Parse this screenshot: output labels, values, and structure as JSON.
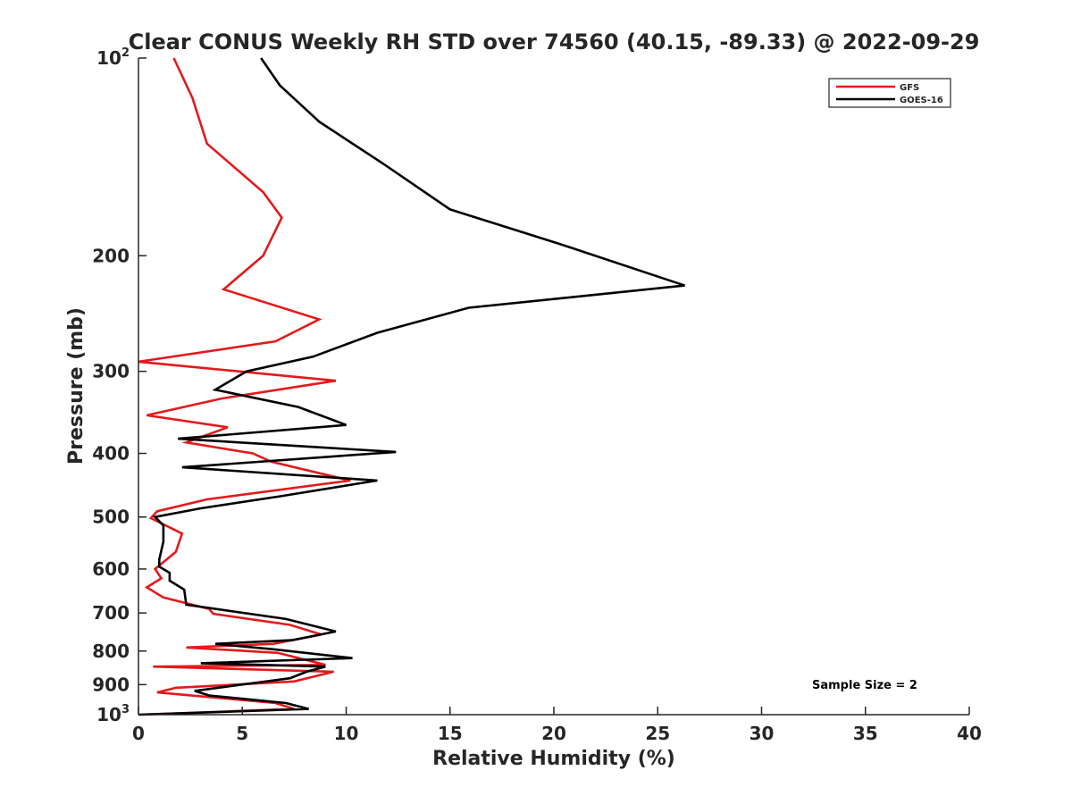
{
  "chart_data": {
    "type": "line",
    "title": "Clear CONUS Weekly RH STD over 74560 (40.15, -89.33) @ 2022-09-29",
    "xlabel": "Relative Humidity (%)",
    "ylabel": "Pressure (mb)",
    "xlim": [
      0,
      40
    ],
    "ylim": [
      100,
      1000
    ],
    "y_scale": "log",
    "y_reversed": true,
    "x_ticks": [
      "0",
      "5",
      "10",
      "15",
      "20",
      "25",
      "30",
      "35",
      "40"
    ],
    "y_ticks": [
      {
        "value": 100,
        "base": "10",
        "exp": "2"
      },
      {
        "value": 200,
        "label": "200"
      },
      {
        "value": 300,
        "label": "300"
      },
      {
        "value": 400,
        "label": "400"
      },
      {
        "value": 500,
        "label": "500"
      },
      {
        "value": 600,
        "label": "600"
      },
      {
        "value": 700,
        "label": "700"
      },
      {
        "value": 800,
        "label": "800"
      },
      {
        "value": 900,
        "label": "900"
      },
      {
        "value": 1000,
        "base": "10",
        "exp": "3"
      }
    ],
    "grid": false,
    "legend_position": "top-right",
    "annotation": "Sample Size = 2",
    "series": [
      {
        "name": "GFS",
        "color": "#e31a1c",
        "points": [
          [
            1.7,
            100
          ],
          [
            2.6,
            115
          ],
          [
            3.3,
            135
          ],
          [
            6.0,
            160
          ],
          [
            6.9,
            175
          ],
          [
            6.0,
            200
          ],
          [
            4.1,
            225
          ],
          [
            8.7,
            250
          ],
          [
            6.6,
            270
          ],
          [
            0.0,
            290
          ],
          [
            9.5,
            310
          ],
          [
            4.0,
            330
          ],
          [
            0.4,
            350
          ],
          [
            4.3,
            365
          ],
          [
            2.3,
            385
          ],
          [
            5.5,
            400
          ],
          [
            6.4,
            412
          ],
          [
            10.2,
            440
          ],
          [
            3.3,
            470
          ],
          [
            0.9,
            490
          ],
          [
            0.6,
            502
          ],
          [
            2.1,
            530
          ],
          [
            1.8,
            565
          ],
          [
            0.8,
            600
          ],
          [
            1.1,
            620
          ],
          [
            0.4,
            640
          ],
          [
            1.2,
            663
          ],
          [
            3.4,
            690
          ],
          [
            3.6,
            702
          ],
          [
            7.3,
            730
          ],
          [
            8.8,
            755
          ],
          [
            6.5,
            780
          ],
          [
            2.3,
            790
          ],
          [
            6.7,
            805
          ],
          [
            9.0,
            840
          ],
          [
            0.7,
            845
          ],
          [
            9.4,
            860
          ],
          [
            7.5,
            890
          ],
          [
            1.8,
            910
          ],
          [
            0.9,
            925
          ],
          [
            6.6,
            960
          ],
          [
            7.5,
            980
          ],
          [
            0.1,
            1000
          ]
        ]
      },
      {
        "name": "GOES-16",
        "color": "#000000",
        "points": [
          [
            5.9,
            100
          ],
          [
            6.8,
            110
          ],
          [
            8.7,
            125
          ],
          [
            11.8,
            145
          ],
          [
            15.0,
            170
          ],
          [
            20.3,
            192
          ],
          [
            26.3,
            222
          ],
          [
            15.9,
            240
          ],
          [
            11.5,
            262
          ],
          [
            8.4,
            285
          ],
          [
            5.2,
            300
          ],
          [
            3.7,
            320
          ],
          [
            7.7,
            340
          ],
          [
            10.0,
            362
          ],
          [
            1.9,
            380
          ],
          [
            12.4,
            398
          ],
          [
            2.1,
            420
          ],
          [
            11.5,
            440
          ],
          [
            6.8,
            465
          ],
          [
            3.0,
            485
          ],
          [
            0.8,
            500
          ],
          [
            1.2,
            515
          ],
          [
            1.2,
            545
          ],
          [
            1.0,
            580
          ],
          [
            1.0,
            595
          ],
          [
            1.5,
            608
          ],
          [
            1.5,
            625
          ],
          [
            2.2,
            645
          ],
          [
            2.3,
            680
          ],
          [
            7.1,
            715
          ],
          [
            9.5,
            747
          ],
          [
            7.4,
            770
          ],
          [
            3.7,
            780
          ],
          [
            6.5,
            795
          ],
          [
            10.3,
            820
          ],
          [
            3.0,
            835
          ],
          [
            9.0,
            845
          ],
          [
            8.1,
            860
          ],
          [
            7.3,
            880
          ],
          [
            2.7,
            920
          ],
          [
            3.4,
            935
          ],
          [
            7.1,
            960
          ],
          [
            8.2,
            980
          ],
          [
            0.0,
            1000
          ]
        ]
      }
    ]
  }
}
